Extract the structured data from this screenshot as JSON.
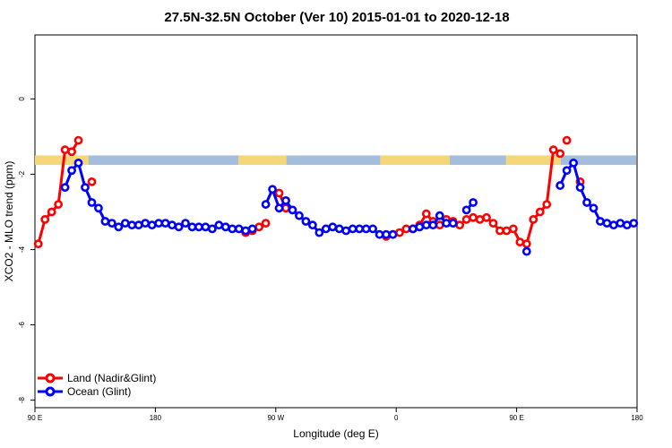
{
  "chart_data": {
    "type": "line",
    "title": "27.5N-32.5N October (Ver 10)   2015-01-01 to 2020-12-18",
    "xlabel": "Longitude (deg E)",
    "ylabel": "XCO2 - MLO trend (ppm)",
    "xlim": [
      90,
      540
    ],
    "ylim": [
      -8.2,
      1.7
    ],
    "x_ticks": [
      {
        "value": 90,
        "label": "90 E"
      },
      {
        "value": 180,
        "label": "180"
      },
      {
        "value": 270,
        "label": "90 W"
      },
      {
        "value": 360,
        "label": "0"
      },
      {
        "value": 450,
        "label": "90 E"
      },
      {
        "value": 540,
        "label": "180"
      }
    ],
    "y_ticks": [
      {
        "value": 0,
        "label": "0"
      },
      {
        "value": -2,
        "label": "-2"
      },
      {
        "value": -4,
        "label": "-4"
      },
      {
        "value": -6,
        "label": "-6"
      },
      {
        "value": -8,
        "label": "-8"
      }
    ],
    "grid": false,
    "legend_position": "bottom-left",
    "surface_band": {
      "y_range": [
        -1.75,
        -1.5
      ],
      "land_color": "#f5d77a",
      "ocean_color": "#a4bddc",
      "land_segments": [
        [
          90,
          130
        ],
        [
          242,
          278
        ],
        [
          348,
          400
        ],
        [
          442,
          483
        ]
      ]
    },
    "series": [
      {
        "name": "Land (Nadir&Glint)",
        "color": "#ff0000",
        "segments": [
          {
            "x": [
              92.5,
              97.5,
              102.5,
              107.5,
              112.5,
              117.5,
              122.5
            ],
            "y": [
              -3.85,
              -3.2,
              -3.0,
              -2.8,
              -1.35,
              -1.4,
              -1.1
            ]
          },
          {
            "x": [
              132.5
            ],
            "y": [
              -2.2
            ]
          },
          {
            "x": [
              247.5,
              252.5,
              257.5,
              262.5
            ],
            "y": [
              -3.55,
              -3.5,
              -3.4,
              -3.3
            ]
          },
          {
            "x": [
              272.5,
              277.5
            ],
            "y": [
              -2.5,
              -2.9
            ]
          },
          {
            "x": [
              352.5,
              357.5,
              362.5,
              367.5,
              372.5,
              377.5,
              382.5,
              387.5,
              392.5,
              397.5,
              402.5,
              407.5,
              412.5,
              417.5,
              422.5,
              427.5,
              432.5,
              437.5,
              442.5,
              447.5,
              452.5,
              457.5,
              462.5,
              467.5,
              472.5,
              477.5,
              482.5
            ],
            "y": [
              -3.65,
              -3.6,
              -3.55,
              -3.45,
              -3.45,
              -3.35,
              -3.05,
              -3.25,
              -3.35,
              -3.2,
              -3.25,
              -3.35,
              -3.2,
              -3.15,
              -3.2,
              -3.15,
              -3.3,
              -3.5,
              -3.5,
              -3.45,
              -3.8,
              -3.85,
              -3.2,
              -3.0,
              -2.8,
              -1.35,
              -1.45
            ]
          },
          {
            "x": [
              487.5
            ],
            "y": [
              -1.1
            ]
          },
          {
            "x": [
              497.5
            ],
            "y": [
              -2.2
            ]
          }
        ]
      },
      {
        "name": "Ocean (Glint)",
        "color": "#0000ff",
        "segments": [
          {
            "x": [
              112.5,
              117.5,
              122.5,
              127.5,
              132.5,
              137.5,
              142.5,
              147.5,
              152.5,
              157.5,
              162.5,
              167.5,
              172.5,
              177.5,
              182.5,
              187.5,
              192.5,
              197.5,
              202.5,
              207.5,
              212.5,
              217.5,
              222.5,
              227.5,
              232.5,
              237.5,
              242.5,
              247.5,
              252.5
            ],
            "y": [
              -2.35,
              -1.9,
              -1.7,
              -2.35,
              -2.75,
              -2.9,
              -3.25,
              -3.3,
              -3.4,
              -3.3,
              -3.35,
              -3.35,
              -3.3,
              -3.35,
              -3.3,
              -3.3,
              -3.35,
              -3.4,
              -3.3,
              -3.4,
              -3.4,
              -3.4,
              -3.45,
              -3.35,
              -3.4,
              -3.45,
              -3.45,
              -3.5,
              -3.45
            ]
          },
          {
            "x": [
              262.5,
              267.5,
              272.5,
              277.5,
              282.5,
              287.5,
              292.5,
              297.5,
              302.5,
              307.5,
              312.5,
              317.5,
              322.5,
              327.5,
              332.5,
              337.5,
              342.5,
              347.5,
              352.5,
              357.5
            ],
            "y": [
              -2.8,
              -2.4,
              -2.9,
              -2.7,
              -2.95,
              -3.1,
              -3.25,
              -3.35,
              -3.55,
              -3.45,
              -3.4,
              -3.45,
              -3.5,
              -3.45,
              -3.45,
              -3.45,
              -3.45,
              -3.6,
              -3.6,
              -3.6
            ]
          },
          {
            "x": [
              372.5,
              377.5,
              382.5,
              387.5,
              392.5,
              397.5,
              402.5
            ],
            "y": [
              -3.45,
              -3.4,
              -3.35,
              -3.35,
              -3.1,
              -3.3,
              -3.3
            ]
          },
          {
            "x": [
              412.5,
              417.5
            ],
            "y": [
              -2.95,
              -2.75
            ]
          },
          {
            "x": [
              457.5
            ],
            "y": [
              -4.05
            ]
          },
          {
            "x": [
              482.5,
              487.5,
              492.5,
              497.5,
              502.5,
              507.5,
              512.5,
              517.5,
              522.5,
              527.5,
              532.5,
              537.5
            ],
            "y": [
              -2.3,
              -1.9,
              -1.7,
              -2.35,
              -2.75,
              -2.9,
              -3.25,
              -3.3,
              -3.35,
              -3.3,
              -3.35,
              -3.3
            ]
          }
        ]
      }
    ]
  }
}
